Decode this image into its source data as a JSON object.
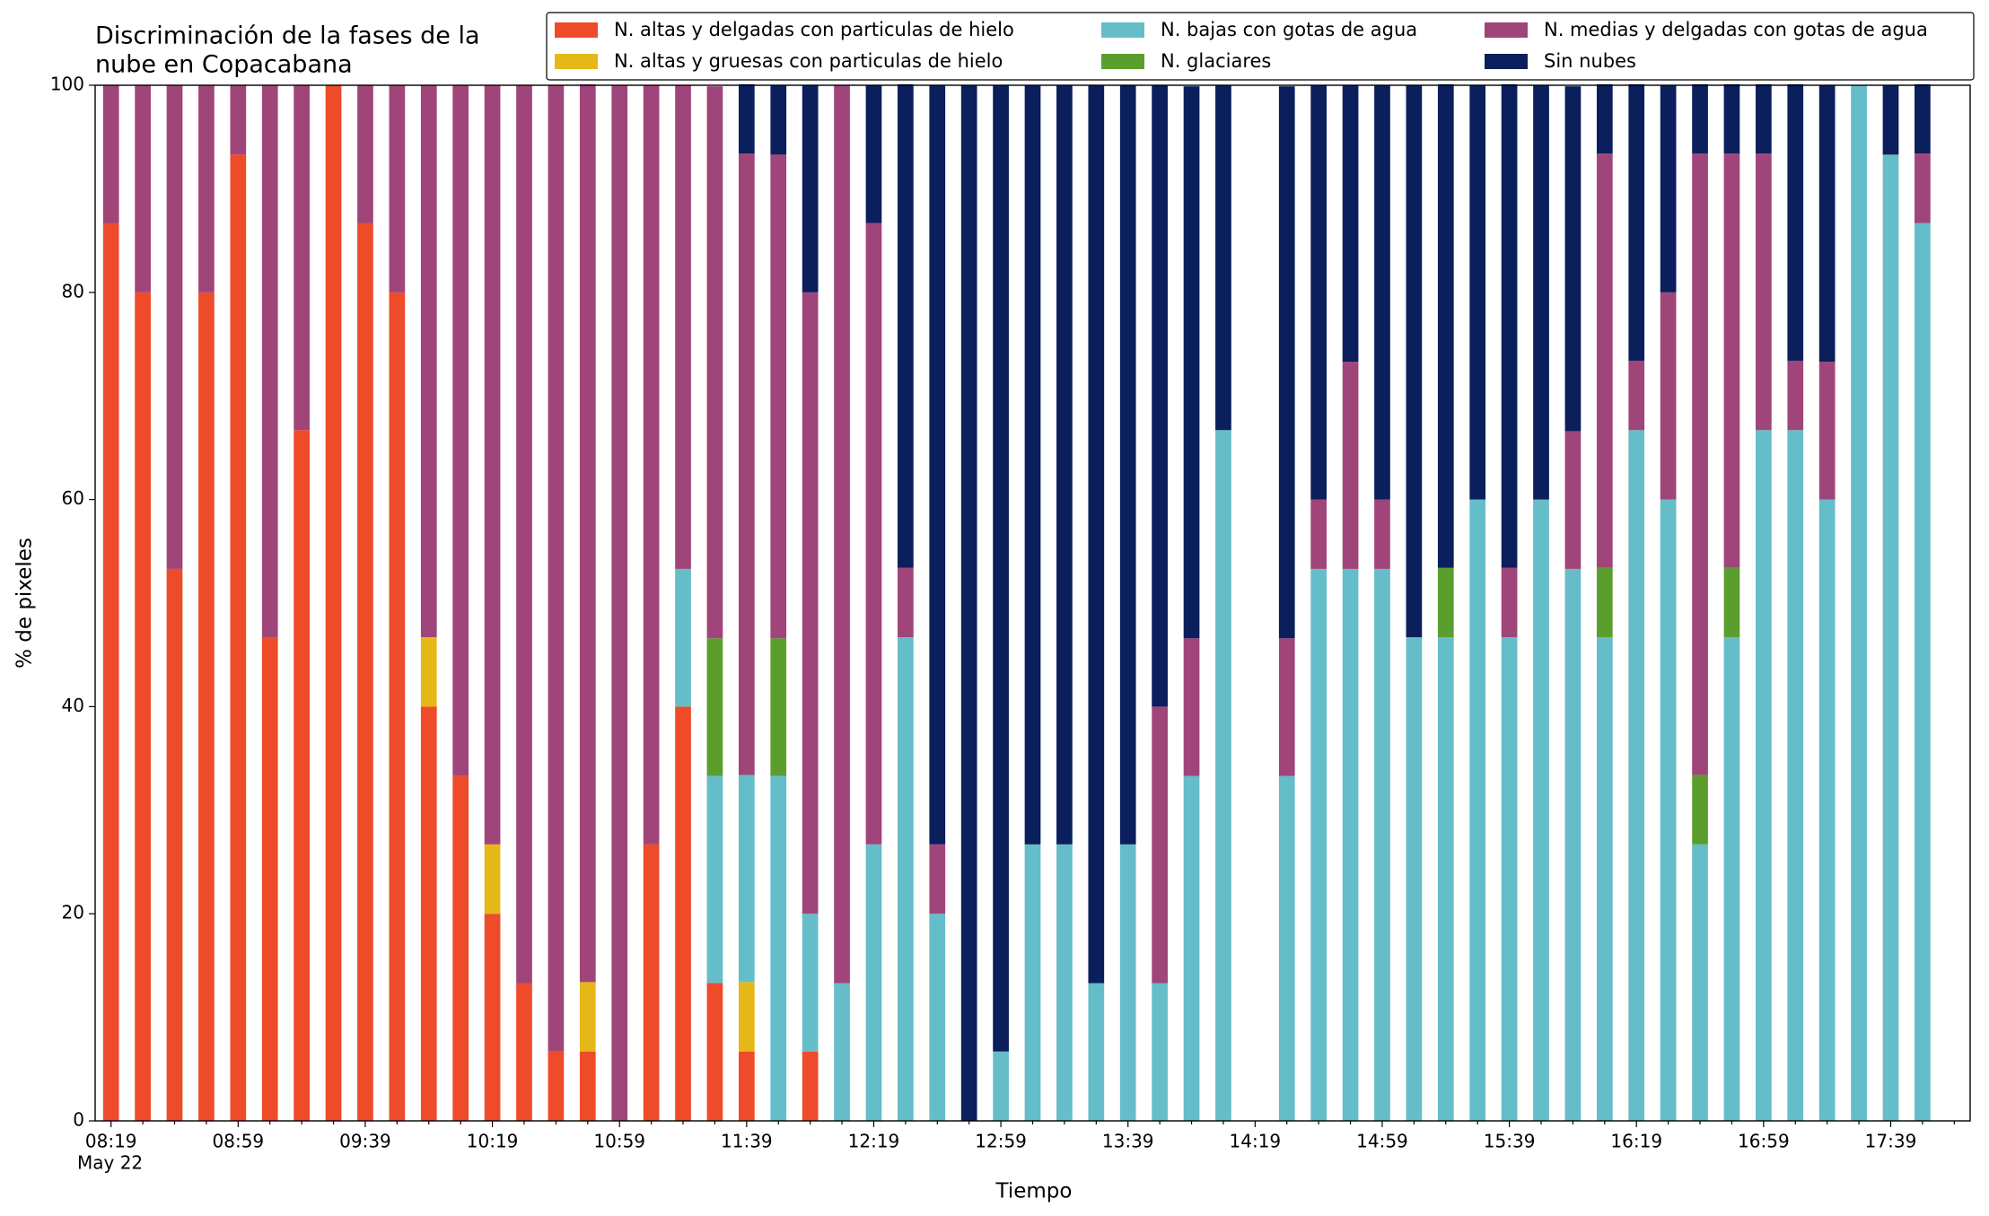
{
  "chart_data": {
    "type": "stacked_bar",
    "title": [
      "Discriminación de la fases de la",
      "nube en Copacabana"
    ],
    "x_label": "Tiempo",
    "y_label": "% de pixeles",
    "date_label": "May 22",
    "categories": [
      "08:19",
      null,
      null,
      null,
      "08:59",
      null,
      null,
      null,
      "09:39",
      null,
      null,
      null,
      "10:19",
      null,
      null,
      null,
      "10:59",
      null,
      null,
      null,
      "11:39",
      null,
      null,
      null,
      "12:19",
      null,
      null,
      null,
      "12:59",
      null,
      null,
      null,
      "13:39",
      null,
      null,
      null,
      "14:19",
      null,
      null,
      null,
      "14:59",
      null,
      null,
      null,
      "15:39",
      null,
      null,
      null,
      "16:19",
      null,
      null,
      null,
      "16:59",
      null,
      null,
      null,
      "17:39",
      null
    ],
    "ylim": [
      0,
      100
    ],
    "yticks": [
      0,
      20,
      40,
      60,
      80,
      100
    ],
    "legend": "top-right",
    "series": [
      {
        "name": "N. altas y delgadas con particulas de hielo",
        "color": "#ee4b2b",
        "values": [
          86.7,
          80,
          53.3,
          80,
          93.3,
          46.7,
          66.7,
          100,
          86.7,
          80,
          40,
          33.3,
          20,
          13.3,
          6.7,
          6.7,
          0,
          26.7,
          40,
          13.3,
          6.7,
          0,
          6.7,
          0,
          0,
          0,
          0,
          0,
          0,
          0,
          0,
          0,
          0,
          0,
          0,
          0,
          null,
          0,
          0,
          0,
          0,
          0,
          0,
          0,
          0,
          0,
          0,
          0,
          0,
          0,
          0,
          0,
          0,
          0,
          0,
          0,
          0,
          0
        ]
      },
      {
        "name": "N. altas y gruesas con particulas de hielo",
        "color": "#e6b817",
        "values": [
          0,
          0,
          0,
          0,
          0,
          0,
          0,
          0,
          0,
          0,
          6.7,
          0,
          6.7,
          0,
          0,
          6.7,
          0,
          0,
          0,
          0,
          6.7,
          0,
          0,
          0,
          0,
          0,
          0,
          0,
          0,
          0,
          0,
          0,
          0,
          0,
          0,
          0,
          null,
          0,
          0,
          0,
          0,
          0,
          0,
          0,
          0,
          0,
          0,
          0,
          0,
          0,
          0,
          0,
          0,
          0,
          0,
          0,
          0,
          0
        ]
      },
      {
        "name": "N. bajas con gotas de agua",
        "color": "#65bdc9",
        "values": [
          0,
          0,
          0,
          0,
          0,
          0,
          0,
          0,
          0,
          0,
          0,
          0,
          0,
          0,
          0,
          0,
          0,
          0,
          13.3,
          20,
          20,
          33.3,
          13.3,
          13.3,
          26.7,
          46.7,
          20,
          0,
          6.7,
          26.7,
          26.7,
          13.3,
          26.7,
          13.3,
          33.3,
          66.7,
          null,
          33.3,
          53.3,
          53.3,
          53.3,
          46.7,
          46.7,
          60,
          46.7,
          60,
          53.3,
          46.7,
          66.7,
          60,
          26.7,
          46.7,
          66.7,
          66.7,
          60,
          100,
          93.3,
          86.7
        ]
      },
      {
        "name": "N. glaciares",
        "color": "#5c9e2e",
        "values": [
          0,
          0,
          0,
          0,
          0,
          0,
          0,
          0,
          0,
          0,
          0,
          0,
          0,
          0,
          0,
          0,
          0,
          0,
          0,
          13.3,
          0,
          13.3,
          0,
          0,
          0,
          0,
          0,
          0,
          0,
          0,
          0,
          0,
          0,
          0,
          0,
          0,
          null,
          0,
          0,
          0,
          0,
          0,
          6.7,
          0,
          0,
          0,
          0,
          6.7,
          0,
          0,
          6.7,
          6.7,
          0,
          0,
          0,
          0,
          0,
          0
        ]
      },
      {
        "name": "N. medias y delgadas con gotas de agua",
        "color": "#a0457a",
        "values": [
          13.3,
          20,
          46.7,
          20,
          6.7,
          53.3,
          33.3,
          0,
          13.3,
          20,
          53.3,
          66.7,
          73.3,
          86.7,
          93.3,
          86.7,
          100,
          73.3,
          46.7,
          53.3,
          60,
          46.7,
          60,
          86.7,
          60,
          6.7,
          6.7,
          0,
          0,
          0,
          0,
          0,
          0,
          26.7,
          13.3,
          0,
          null,
          13.3,
          6.7,
          20,
          6.7,
          0,
          0,
          0,
          6.7,
          0,
          13.3,
          40,
          6.7,
          20,
          60,
          40,
          26.7,
          6.7,
          13.3,
          0,
          0,
          6.7
        ]
      },
      {
        "name": "Sin nubes",
        "color": "#0a1f5c",
        "values": [
          0,
          0,
          0,
          0,
          0,
          0,
          0,
          0,
          0,
          0,
          0,
          0,
          0,
          0,
          0,
          0,
          0,
          0,
          0,
          0,
          6.7,
          6.7,
          20,
          0,
          13.3,
          46.7,
          73.3,
          100,
          93.3,
          73.3,
          73.3,
          86.7,
          73.3,
          60,
          53.3,
          33.3,
          null,
          53.3,
          40,
          26.7,
          40,
          53.3,
          46.7,
          40,
          46.7,
          40,
          33.3,
          6.7,
          26.7,
          20,
          6.7,
          6.7,
          6.7,
          26.7,
          26.7,
          0,
          6.7,
          6.7
        ]
      }
    ]
  }
}
